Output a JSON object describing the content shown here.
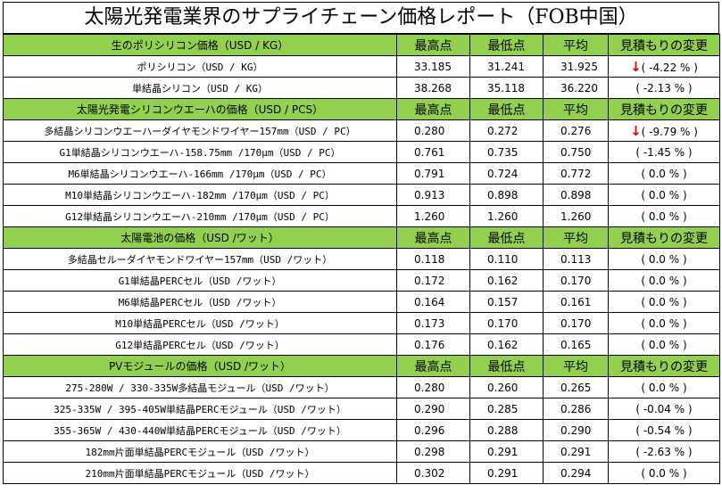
{
  "title": "太陽光発電業界のサプライチェーン価格レポート（FOB中国）",
  "sections": [
    {
      "header": "生のポリシリコン価格（USD / KG）",
      "columns": [
        "最高点",
        "最低点",
        "平均",
        "見積もりの変更"
      ],
      "rows": [
        {
          "name": "ポリシリコン（USD / KG）",
          "high": "33.185",
          "low": "31.241",
          "avg": "31.925",
          "change": "( -4.22 % )",
          "arrow": "↓"
        },
        {
          "name": "単結晶シリコン（USD / KG）",
          "high": "38.268",
          "low": "35.118",
          "avg": "36.220",
          "change": "( -2.13 % )",
          "arrow": ""
        }
      ]
    },
    {
      "header": "太陽光発電シリコンウエーハの価格（USD / PCS）",
      "columns": [
        "最高点",
        "最低点",
        "平均",
        "見積もりの変更"
      ],
      "rows": [
        {
          "name": "多結晶シリコンウエーハーダイヤモンドワイヤー157mm（USD / PC）",
          "high": "0.280",
          "low": "0.272",
          "avg": "0.276",
          "change": "( -9.79 % )",
          "arrow": "↓"
        },
        {
          "name": "G1単結晶シリコンウエーハ-158.75mm /170μm（USD / PC）",
          "high": "0.761",
          "low": "0.735",
          "avg": "0.750",
          "change": "( -1.45 % )",
          "arrow": ""
        },
        {
          "name": "M6単結晶シリコンウエーハ-166mm /170μm（USD / PC）",
          "high": "0.791",
          "low": "0.724",
          "avg": "0.772",
          "change": "( 0.0 % )",
          "arrow": ""
        },
        {
          "name": "M10単結晶シリコンウエーハ-182mm /170μm（USD / PC）",
          "high": "0.913",
          "low": "0.898",
          "avg": "0.898",
          "change": "( 0.0 % )",
          "arrow": ""
        },
        {
          "name": "G12単結晶シリコンウエーハ-210mm /170μm（USD / PC）",
          "high": "1.260",
          "low": "1.260",
          "avg": "1.260",
          "change": "( 0.0 % )",
          "arrow": ""
        }
      ]
    },
    {
      "header": "太陽電池の価格（USD /ワット）",
      "columns": [
        "最高点",
        "最低点",
        "平均",
        "見積もりの変更"
      ],
      "rows": [
        {
          "name": "多結晶セルーダイヤモンドワイヤー157mm（USD /ワット）",
          "high": "0.118",
          "low": "0.110",
          "avg": "0.113",
          "change": "( 0.0 % )",
          "arrow": ""
        },
        {
          "name": "G1単結晶PERCセル（USD /ワット）",
          "high": "0.172",
          "low": "0.162",
          "avg": "0.170",
          "change": "( 0.0 % )",
          "arrow": ""
        },
        {
          "name": "M6単結晶PERCセル（USD /ワット）",
          "high": "0.164",
          "low": "0.157",
          "avg": "0.161",
          "change": "( 0.0 % )",
          "arrow": ""
        },
        {
          "name": "M10単結晶PERCセル（USD /ワット）",
          "high": "0.173",
          "low": "0.170",
          "avg": "0.170",
          "change": "( 0.0 % )",
          "arrow": ""
        },
        {
          "name": "G12単結晶PERCセル（USD /ワット）",
          "high": "0.176",
          "low": "0.162",
          "avg": "0.165",
          "change": "( 0.0 % )",
          "arrow": ""
        }
      ]
    },
    {
      "header": "PVモジュールの価格（USD /ワット）",
      "columns": [
        "最高点",
        "最低点",
        "平均",
        "見積もりの変更"
      ],
      "rows": [
        {
          "name": "275-280W / 330-335W多結晶モジュール（USD /ワット）",
          "high": "0.280",
          "low": "0.260",
          "avg": "0.265",
          "change": "( 0.0 % )",
          "arrow": ""
        },
        {
          "name": "325-335W / 395-405W単結晶PERCモジュール（USD /ワット）",
          "high": "0.290",
          "low": "0.285",
          "avg": "0.286",
          "change": "( -0.04 % )",
          "arrow": ""
        },
        {
          "name": "355-365W / 430-440W単結晶PERCモジュール（USD /ワット）",
          "high": "0.296",
          "low": "0.288",
          "avg": "0.290",
          "change": "( -0.54 % )",
          "arrow": ""
        },
        {
          "name": "182mm片面単結晶PERCモジュール（USD /ワット）",
          "high": "0.298",
          "low": "0.291",
          "avg": "0.291",
          "change": "( -2.63 % )",
          "arrow": ""
        },
        {
          "name": "210mm片面単結晶PERCモジュール（USD /ワット）",
          "high": "0.302",
          "low": "0.291",
          "avg": "0.294",
          "change": "( 0.0 % )",
          "arrow": ""
        }
      ]
    }
  ]
}
